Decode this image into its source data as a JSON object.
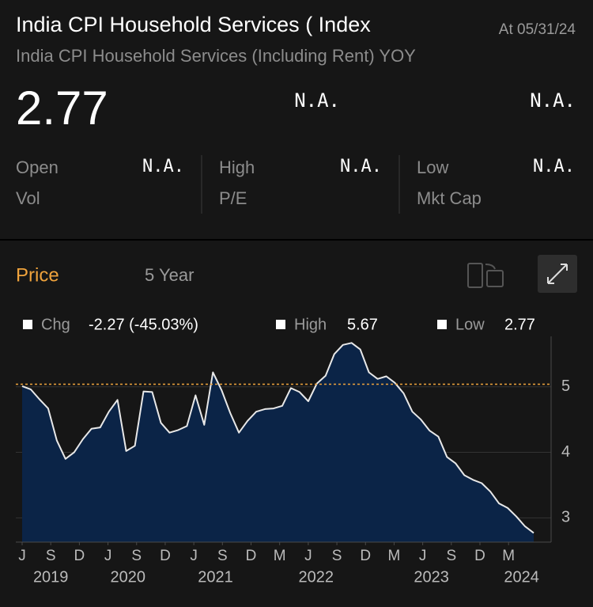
{
  "header": {
    "title": "India CPI Household Services ( Index",
    "date": "At 05/31/24",
    "subtitle": "India CPI Household Services (Including Rent) YOY",
    "price": "2.77",
    "change": "N.A.",
    "change_pct": "N.A."
  },
  "stats": [
    {
      "label": "Open",
      "value": "N.A."
    },
    {
      "label": "High",
      "value": "N.A."
    },
    {
      "label": "Low",
      "value": "N.A."
    },
    {
      "label": "Vol"
    },
    {
      "label": "P/E"
    },
    {
      "label": "Mkt Cap"
    }
  ],
  "panel": {
    "tab": "Price",
    "period": "5 Year"
  },
  "summary": {
    "chg_label": "Chg",
    "chg": "-2.27 (-45.03%)",
    "high_label": "High",
    "high": "5.67",
    "low_label": "Low",
    "low": "2.77"
  },
  "chart_data": {
    "type": "area",
    "color": "#e8e8e8",
    "fill": "#0b2447",
    "x": [
      0,
      1,
      2,
      3,
      4,
      5,
      6,
      7,
      8,
      9,
      10,
      11,
      12,
      13,
      14,
      15,
      16,
      17,
      18,
      19,
      20,
      21,
      22,
      23,
      24,
      25,
      26,
      27,
      28,
      29,
      30,
      31,
      32,
      33,
      34,
      35,
      36,
      37,
      38,
      39,
      40,
      41,
      42,
      43,
      44,
      45,
      46,
      47,
      48,
      49,
      50,
      51,
      52,
      53,
      54,
      55,
      56,
      57,
      58,
      59
    ],
    "values": [
      5.01,
      4.96,
      4.81,
      4.67,
      4.18,
      3.9,
      4.0,
      4.2,
      4.36,
      4.38,
      4.62,
      4.8,
      4.02,
      4.1,
      4.93,
      4.92,
      4.45,
      4.3,
      4.34,
      4.4,
      4.87,
      4.42,
      5.22,
      4.95,
      4.6,
      4.3,
      4.48,
      4.62,
      4.66,
      4.67,
      4.71,
      4.98,
      4.92,
      4.78,
      5.05,
      5.17,
      5.5,
      5.64,
      5.67,
      5.57,
      5.22,
      5.12,
      5.16,
      5.06,
      4.9,
      4.62,
      4.5,
      4.33,
      4.24,
      3.93,
      3.83,
      3.65,
      3.58,
      3.53,
      3.4,
      3.22,
      3.15,
      3.02,
      2.87,
      2.77
    ],
    "reference_line": 5.04,
    "xlim": [
      0,
      59
    ],
    "xticks": [
      {
        "value": 0,
        "label": "J"
      },
      {
        "value": 3.3,
        "label": "S"
      },
      {
        "value": 6.6,
        "label": "D"
      },
      {
        "value": 9.9,
        "label": "J"
      },
      {
        "value": 13.2,
        "label": "S"
      },
      {
        "value": 16.5,
        "label": "D"
      },
      {
        "value": 19.8,
        "label": "J"
      },
      {
        "value": 23.1,
        "label": "S"
      },
      {
        "value": 26.4,
        "label": "D"
      },
      {
        "value": 29.7,
        "label": "M"
      },
      {
        "value": 33,
        "label": "J"
      },
      {
        "value": 36.3,
        "label": "S"
      },
      {
        "value": 39.6,
        "label": "D"
      },
      {
        "value": 42.9,
        "label": "M"
      },
      {
        "value": 46.2,
        "label": "J"
      },
      {
        "value": 49.5,
        "label": "S"
      },
      {
        "value": 52.8,
        "label": "D"
      },
      {
        "value": 56.1,
        "label": "M"
      }
    ],
    "year_labels": [
      {
        "value": 3.3,
        "label": "2019"
      },
      {
        "value": 12.2,
        "label": "2020"
      },
      {
        "value": 22.3,
        "label": "2021"
      },
      {
        "value": 33.9,
        "label": "2022"
      },
      {
        "value": 47.2,
        "label": "2023"
      },
      {
        "value": 57.6,
        "label": "2024"
      }
    ],
    "ylim": [
      2.63,
      5.77
    ],
    "yticks": [
      3,
      4,
      5
    ],
    "grid": true
  }
}
